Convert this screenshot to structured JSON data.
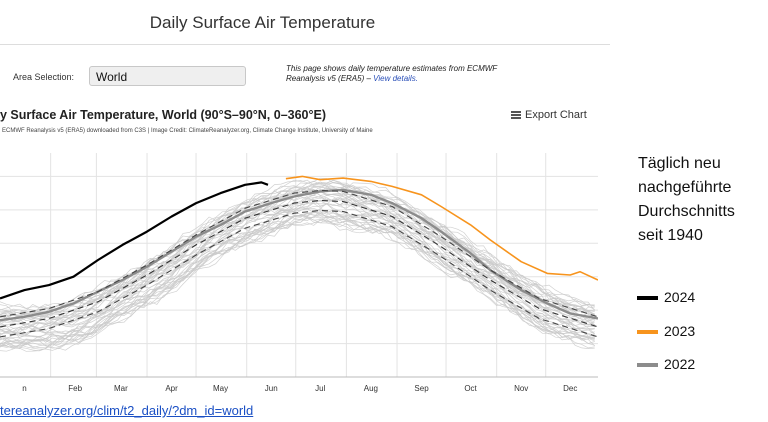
{
  "page": {
    "title": "Daily Surface Air Temperature",
    "area_label": "Area Selection:",
    "area_value": "World",
    "info_text": "This page shows daily temperature estimates from ECMWF Reanalysis v5 (ERA5) – ",
    "info_link": "View details.",
    "chart_title": "y Surface Air Temperature, World (90°S–90°N, 0–360°E)",
    "export_label": "Export Chart",
    "credit": "ECMWF Reanalysis v5 (ERA5) downloaded from C3S | Image Credit: ClimateReanalyzer.org, Climate Change Institute, University of Maine",
    "url": "tereanalyzer.org/clim/t2_daily/?dm_id=world"
  },
  "note_lines": [
    "Täglich neu",
    "nachgeführte",
    "Durchschnitts",
    "seit 1940"
  ],
  "legend": [
    {
      "label": "2024",
      "color": "#000000"
    },
    {
      "label": "2023",
      "color": "#f7941d"
    },
    {
      "label": "2022",
      "color": "#8c8c8c"
    }
  ],
  "chart_data": {
    "type": "line",
    "title": "y Surface Air Temperature, World (90°S–90°N, 0–360°E)",
    "x_tick_labels": [
      "n",
      "Feb",
      "Mar",
      "Apr",
      "May",
      "Jun",
      "Jul",
      "Aug",
      "Sep",
      "Oct",
      "Nov",
      "Dec"
    ],
    "x_tick_days": [
      15,
      46,
      74,
      105,
      135,
      166,
      196,
      227,
      258,
      288,
      319,
      349
    ],
    "xlim": [
      0,
      366
    ],
    "ylim": [
      11,
      17.7
    ],
    "grid": true,
    "legend_position": "outside-right",
    "series": [
      {
        "name": "2024",
        "color": "#000000",
        "x": [
          0,
          15,
          30,
          45,
          60,
          75,
          90,
          105,
          120,
          135,
          150,
          160,
          164
        ],
        "y": [
          13.35,
          13.6,
          13.75,
          14.0,
          14.5,
          14.95,
          15.35,
          15.8,
          16.2,
          16.5,
          16.75,
          16.82,
          16.75
        ]
      },
      {
        "name": "2023",
        "color": "#f7941d",
        "x": [
          175,
          185,
          196,
          210,
          227,
          240,
          258,
          270,
          288,
          300,
          319,
          335,
          349,
          355,
          366
        ],
        "y": [
          16.93,
          17.0,
          16.9,
          16.95,
          16.85,
          16.7,
          16.45,
          16.1,
          15.55,
          15.1,
          14.45,
          14.1,
          14.05,
          14.15,
          13.9
        ]
      },
      {
        "name": "2022",
        "color": "#8c8c8c",
        "x": [
          0,
          15,
          30,
          45,
          60,
          75,
          90,
          105,
          120,
          135,
          150,
          166,
          180,
          196,
          210,
          227,
          240,
          258,
          270,
          288,
          300,
          319,
          335,
          349,
          366
        ],
        "y": [
          12.7,
          12.8,
          12.95,
          13.2,
          13.55,
          13.9,
          14.3,
          14.75,
          15.2,
          15.55,
          15.95,
          16.2,
          16.4,
          16.55,
          16.6,
          16.45,
          16.2,
          15.75,
          15.35,
          14.7,
          14.2,
          13.6,
          13.2,
          12.9,
          12.75
        ]
      },
      {
        "name": "",
        "color": "#333333",
        "dash": true,
        "x": [
          0,
          30,
          60,
          90,
          120,
          150,
          180,
          196,
          210,
          240,
          270,
          300,
          330,
          366
        ],
        "y": [
          12.5,
          12.75,
          13.25,
          14.05,
          14.95,
          15.75,
          16.2,
          16.28,
          16.25,
          15.8,
          14.9,
          13.9,
          13.05,
          12.5
        ]
      },
      {
        "name": "",
        "color": "#444444",
        "dash": true,
        "x": [
          0,
          30,
          60,
          90,
          120,
          150,
          180,
          196,
          210,
          240,
          270,
          300,
          330,
          366
        ],
        "y": [
          12.8,
          13.05,
          13.55,
          14.35,
          15.25,
          16.05,
          16.5,
          16.58,
          16.55,
          16.1,
          15.2,
          14.2,
          13.35,
          12.8
        ]
      },
      {
        "name": "",
        "color": "#444444",
        "dash": true,
        "x": [
          0,
          30,
          60,
          90,
          120,
          150,
          180,
          196,
          210,
          240,
          270,
          300,
          330,
          366
        ],
        "y": [
          12.2,
          12.45,
          12.95,
          13.75,
          14.65,
          15.45,
          15.9,
          15.98,
          15.95,
          15.5,
          14.6,
          13.6,
          12.75,
          12.2
        ]
      }
    ]
  }
}
